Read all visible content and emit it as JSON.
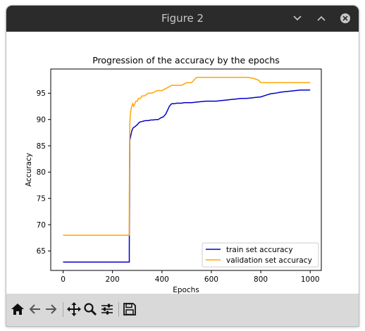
{
  "window": {
    "title": "Figure 2"
  },
  "titlebar_buttons": [
    {
      "name": "minimize",
      "icon": "chevron-down-icon"
    },
    {
      "name": "maximize",
      "icon": "chevron-up-icon"
    },
    {
      "name": "close",
      "icon": "close-icon"
    }
  ],
  "toolbar": [
    {
      "name": "home",
      "icon": "home-icon"
    },
    {
      "name": "back",
      "icon": "arrow-left-icon"
    },
    {
      "name": "forward",
      "icon": "arrow-right-icon"
    },
    {
      "name": "pan",
      "icon": "move-icon"
    },
    {
      "name": "zoom",
      "icon": "magnifier-icon"
    },
    {
      "name": "configure-subplots",
      "icon": "sliders-icon"
    },
    {
      "name": "save",
      "icon": "floppy-disk-icon"
    }
  ],
  "colors": {
    "train": "#0000cc",
    "validation": "#ffa500"
  },
  "chart_data": {
    "type": "line",
    "title": "Progression of the accuracy by the epochs",
    "xlabel": "Epochs",
    "ylabel": "Accuracy",
    "xlim": [
      -50,
      1045
    ],
    "ylim": [
      61.3,
      99.6
    ],
    "xticks": [
      0,
      200,
      400,
      600,
      800,
      1000
    ],
    "yticks": [
      65,
      70,
      75,
      80,
      85,
      90,
      95
    ],
    "legend_position": "lower-right",
    "grid": false,
    "series": [
      {
        "name": "train set accuracy",
        "color": "#0000cc",
        "x": [
          0,
          268,
          268,
          270,
          272,
          275,
          278,
          282,
          286,
          290,
          295,
          300,
          305,
          310,
          318,
          326,
          335,
          345,
          355,
          365,
          375,
          385,
          395,
          405,
          415,
          420,
          425,
          430,
          435,
          440,
          445,
          450,
          460,
          470,
          480,
          490,
          500,
          520,
          540,
          560,
          580,
          600,
          620,
          640,
          660,
          680,
          700,
          720,
          740,
          760,
          780,
          800,
          820,
          840,
          860,
          880,
          900,
          920,
          940,
          960,
          980,
          1000
        ],
        "y": [
          62.9,
          62.9,
          66.0,
          86.0,
          86.5,
          87.2,
          87.8,
          88.3,
          88.5,
          88.6,
          88.8,
          89.0,
          89.3,
          89.5,
          89.6,
          89.7,
          89.8,
          89.8,
          89.9,
          89.9,
          90.0,
          90.0,
          90.3,
          90.5,
          91.0,
          91.5,
          92.0,
          92.5,
          92.8,
          93.0,
          93.0,
          93.0,
          93.1,
          93.1,
          93.1,
          93.2,
          93.2,
          93.2,
          93.3,
          93.4,
          93.5,
          93.5,
          93.5,
          93.6,
          93.7,
          93.8,
          93.9,
          94.0,
          94.0,
          94.1,
          94.2,
          94.3,
          94.6,
          94.9,
          95.0,
          95.2,
          95.3,
          95.4,
          95.5,
          95.6,
          95.6,
          95.6
        ]
      },
      {
        "name": "validation set accuracy",
        "color": "#ffa500",
        "x": [
          0,
          268,
          268,
          270,
          272,
          275,
          278,
          282,
          286,
          290,
          295,
          300,
          305,
          312,
          320,
          330,
          345,
          360,
          380,
          400,
          420,
          440,
          460,
          480,
          500,
          520,
          540,
          560,
          600,
          650,
          700,
          750,
          770,
          790,
          800,
          850,
          900,
          950,
          1000
        ],
        "y": [
          68.0,
          68.0,
          75.0,
          89.0,
          91.0,
          92.0,
          92.5,
          93.0,
          92.5,
          93.0,
          93.5,
          93.5,
          94.0,
          94.0,
          94.5,
          94.5,
          95.0,
          95.0,
          95.5,
          95.5,
          96.0,
          96.5,
          96.5,
          96.5,
          97.0,
          97.0,
          98.0,
          98.0,
          98.0,
          98.0,
          98.0,
          98.0,
          97.8,
          97.5,
          97.0,
          97.0,
          97.0,
          97.0,
          97.0
        ]
      }
    ]
  }
}
